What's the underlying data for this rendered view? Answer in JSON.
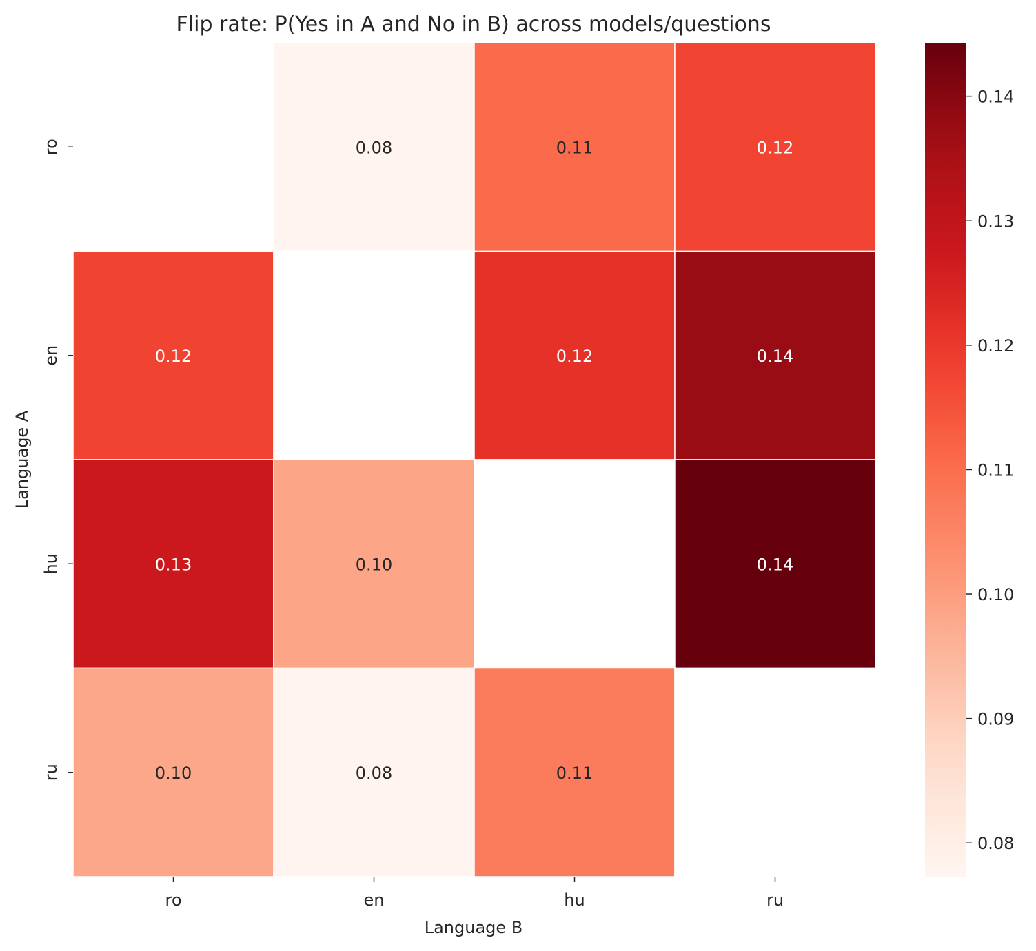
{
  "chart_data": {
    "type": "heatmap",
    "title": "Flip rate: P(Yes in A and No in B) across models/questions",
    "xlabel": "Language B",
    "ylabel": "Language A",
    "x_categories": [
      "ro",
      "en",
      "hu",
      "ru"
    ],
    "y_categories": [
      "ro",
      "en",
      "hu",
      "ru"
    ],
    "values": [
      [
        null,
        0.0775,
        0.1106,
        0.1175
      ],
      [
        0.1177,
        null,
        0.1215,
        0.1375
      ],
      [
        0.1275,
        0.0986,
        null,
        0.1443
      ],
      [
        0.0981,
        0.0776,
        0.107,
        null
      ]
    ],
    "annotations": [
      [
        "",
        "0.08",
        "0.11",
        "0.12"
      ],
      [
        "0.12",
        "",
        "0.12",
        "0.14"
      ],
      [
        "0.13",
        "0.10",
        "",
        "0.14"
      ],
      [
        "0.10",
        "0.08",
        "0.11",
        ""
      ]
    ],
    "colormap": "Reds",
    "colorbar": {
      "range": [
        0.0773,
        0.1443
      ],
      "ticks": [
        0.08,
        0.09,
        0.1,
        0.11,
        0.12,
        0.13,
        0.14
      ],
      "tick_labels": [
        "0.08",
        "0.09",
        "0.10",
        "0.11",
        "0.12",
        "0.13",
        "0.14"
      ]
    },
    "colors": {
      "cell_border": "#ffffff",
      "light_text": "#ffffff",
      "dark_text": "#262626",
      "missing": "#ffffff"
    }
  }
}
